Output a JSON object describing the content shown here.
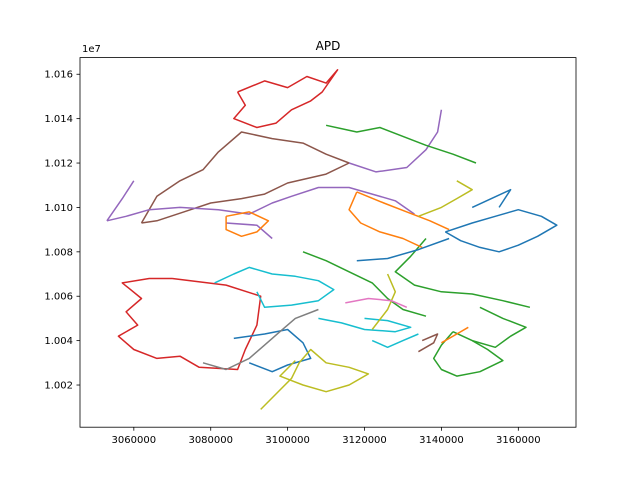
{
  "chart_data": {
    "type": "line",
    "title": "APD",
    "xlabel": "",
    "ylabel": "",
    "offset_text": "1e7",
    "xlim": [
      3046000,
      3175000
    ],
    "ylim": [
      10001000,
      10167500
    ],
    "x_ticks": [
      {
        "value": 3060000,
        "label": "3060000"
      },
      {
        "value": 3080000,
        "label": "3080000"
      },
      {
        "value": 3100000,
        "label": "3100000"
      },
      {
        "value": 3120000,
        "label": "3120000"
      },
      {
        "value": 3140000,
        "label": "3140000"
      },
      {
        "value": 3160000,
        "label": "3160000"
      }
    ],
    "y_ticks": [
      {
        "value": 10020000,
        "label": "1.002"
      },
      {
        "value": 10040000,
        "label": "1.004"
      },
      {
        "value": 10060000,
        "label": "1.006"
      },
      {
        "value": 10080000,
        "label": "1.008"
      },
      {
        "value": 10100000,
        "label": "1.010"
      },
      {
        "value": 10120000,
        "label": "1.012"
      },
      {
        "value": 10140000,
        "label": "1.014"
      },
      {
        "value": 10160000,
        "label": "1.016"
      }
    ],
    "grid": false,
    "legend": "none",
    "series": [
      {
        "color": "#d62728",
        "points": [
          [
            3070000,
            10068000
          ],
          [
            3084000,
            10065000
          ],
          [
            3093000,
            10060000
          ],
          [
            3092000,
            10047000
          ],
          [
            3089000,
            10036000
          ],
          [
            3087000,
            10027000
          ],
          [
            3077000,
            10028000
          ],
          [
            3072000,
            10033000
          ],
          [
            3066000,
            10032000
          ],
          [
            3060000,
            10036000
          ],
          [
            3056000,
            10042000
          ],
          [
            3061000,
            10047000
          ],
          [
            3058000,
            10053000
          ],
          [
            3062000,
            10059000
          ],
          [
            3057000,
            10066000
          ],
          [
            3064000,
            10068000
          ],
          [
            3070000,
            10068000
          ]
        ]
      },
      {
        "color": "#d62728",
        "points": [
          [
            3087000,
            10152000
          ],
          [
            3094000,
            10157000
          ],
          [
            3100000,
            10154000
          ],
          [
            3105000,
            10159000
          ],
          [
            3110000,
            10156000
          ],
          [
            3113000,
            10162000
          ],
          [
            3109000,
            10152000
          ],
          [
            3106000,
            10148000
          ],
          [
            3101000,
            10144000
          ],
          [
            3097000,
            10138000
          ],
          [
            3092000,
            10136000
          ],
          [
            3086000,
            10140000
          ],
          [
            3089000,
            10146000
          ],
          [
            3087000,
            10152000
          ]
        ]
      },
      {
        "color": "#8c564b",
        "points": [
          [
            3062000,
            10093000
          ],
          [
            3066000,
            10105000
          ],
          [
            3072000,
            10112000
          ],
          [
            3078000,
            10117000
          ],
          [
            3082000,
            10125000
          ],
          [
            3088000,
            10134000
          ],
          [
            3096000,
            10131000
          ],
          [
            3104000,
            10129000
          ],
          [
            3110000,
            10124000
          ],
          [
            3116000,
            10120000
          ],
          [
            3110000,
            10115000
          ],
          [
            3100000,
            10111000
          ],
          [
            3094000,
            10106000
          ],
          [
            3088000,
            10104000
          ],
          [
            3080000,
            10102000
          ],
          [
            3073000,
            10098000
          ],
          [
            3066000,
            10094000
          ],
          [
            3062000,
            10093000
          ]
        ]
      },
      {
        "color": "#9467bd",
        "points": [
          [
            3053000,
            10094000
          ],
          [
            3058000,
            10096000
          ],
          [
            3064000,
            10099000
          ],
          [
            3072000,
            10100000
          ],
          [
            3082000,
            10099000
          ],
          [
            3090000,
            10097000
          ],
          [
            3096000,
            10102000
          ],
          [
            3101000,
            10105000
          ],
          [
            3108000,
            10109000
          ],
          [
            3116000,
            10109000
          ],
          [
            3122000,
            10106000
          ],
          [
            3128000,
            10103000
          ],
          [
            3133000,
            10097000
          ]
        ]
      },
      {
        "color": "#9467bd",
        "points": [
          [
            3053000,
            10094000
          ],
          [
            3057000,
            10104000
          ],
          [
            3060000,
            10112000
          ]
        ]
      },
      {
        "color": "#9467bd",
        "points": [
          [
            3116000,
            10120000
          ],
          [
            3123000,
            10116000
          ],
          [
            3131000,
            10118000
          ],
          [
            3136000,
            10126000
          ],
          [
            3139000,
            10134000
          ],
          [
            3140000,
            10144000
          ]
        ]
      },
      {
        "color": "#9467bd",
        "points": [
          [
            3084000,
            10093000
          ],
          [
            3092000,
            10092000
          ],
          [
            3096000,
            10086000
          ]
        ]
      },
      {
        "color": "#2ca02c",
        "points": [
          [
            3110000,
            10137000
          ],
          [
            3118000,
            10134000
          ],
          [
            3124000,
            10136000
          ],
          [
            3130000,
            10132000
          ],
          [
            3136000,
            10128000
          ],
          [
            3143000,
            10124000
          ],
          [
            3149000,
            10120000
          ]
        ]
      },
      {
        "color": "#2ca02c",
        "points": [
          [
            3104000,
            10080000
          ],
          [
            3110000,
            10076000
          ],
          [
            3116000,
            10071000
          ],
          [
            3122000,
            10066000
          ],
          [
            3126000,
            10059000
          ],
          [
            3130000,
            10054000
          ],
          [
            3136000,
            10051000
          ]
        ]
      },
      {
        "color": "#2ca02c",
        "points": [
          [
            3136000,
            10086000
          ],
          [
            3132000,
            10078000
          ],
          [
            3128000,
            10071000
          ],
          [
            3133000,
            10065000
          ],
          [
            3140000,
            10062000
          ],
          [
            3148000,
            10061000
          ],
          [
            3156000,
            10058000
          ],
          [
            3163000,
            10055000
          ]
        ]
      },
      {
        "color": "#2ca02c",
        "points": [
          [
            3143000,
            10044000
          ],
          [
            3148000,
            10040000
          ],
          [
            3152000,
            10036000
          ],
          [
            3156000,
            10031000
          ],
          [
            3150000,
            10026000
          ],
          [
            3144000,
            10024000
          ],
          [
            3140000,
            10027000
          ],
          [
            3138000,
            10032000
          ],
          [
            3140000,
            10038000
          ],
          [
            3143000,
            10044000
          ]
        ]
      },
      {
        "color": "#2ca02c",
        "points": [
          [
            3150000,
            10055000
          ],
          [
            3156000,
            10050000
          ],
          [
            3162000,
            10046000
          ],
          [
            3158000,
            10042000
          ],
          [
            3154000,
            10037000
          ],
          [
            3148000,
            10040000
          ]
        ]
      },
      {
        "color": "#ff7f0e",
        "points": [
          [
            3084000,
            10096000
          ],
          [
            3090000,
            10098000
          ],
          [
            3095000,
            10094000
          ],
          [
            3092000,
            10089000
          ],
          [
            3088000,
            10087000
          ],
          [
            3084000,
            10090000
          ],
          [
            3084000,
            10096000
          ]
        ]
      },
      {
        "color": "#ff7f0e",
        "points": [
          [
            3118000,
            10107000
          ],
          [
            3125000,
            10102000
          ],
          [
            3131000,
            10098000
          ],
          [
            3137000,
            10094000
          ],
          [
            3142000,
            10090000
          ]
        ]
      },
      {
        "color": "#ff7f0e",
        "points": [
          [
            3118000,
            10107000
          ],
          [
            3116000,
            10099000
          ],
          [
            3119000,
            10093000
          ],
          [
            3124000,
            10089000
          ],
          [
            3130000,
            10086000
          ],
          [
            3135000,
            10082000
          ]
        ]
      },
      {
        "color": "#ff7f0e",
        "points": [
          [
            3140000,
            10039000
          ],
          [
            3144000,
            10043000
          ],
          [
            3147000,
            10046000
          ]
        ]
      },
      {
        "color": "#1f77b4",
        "points": [
          [
            3141000,
            10089000
          ],
          [
            3148000,
            10093000
          ],
          [
            3154000,
            10096000
          ],
          [
            3160000,
            10099000
          ],
          [
            3166000,
            10096000
          ],
          [
            3170000,
            10092000
          ],
          [
            3165000,
            10087000
          ],
          [
            3160000,
            10083000
          ],
          [
            3155000,
            10080000
          ],
          [
            3150000,
            10082000
          ],
          [
            3145000,
            10085000
          ],
          [
            3141000,
            10089000
          ]
        ]
      },
      {
        "color": "#1f77b4",
        "points": [
          [
            3148000,
            10100000
          ],
          [
            3153000,
            10104000
          ],
          [
            3158000,
            10108000
          ],
          [
            3155000,
            10100000
          ]
        ]
      },
      {
        "color": "#1f77b4",
        "points": [
          [
            3118000,
            10076000
          ],
          [
            3126000,
            10077000
          ],
          [
            3134000,
            10081000
          ],
          [
            3142000,
            10086000
          ]
        ]
      },
      {
        "color": "#1f77b4",
        "points": [
          [
            3086000,
            10041000
          ],
          [
            3094000,
            10043000
          ],
          [
            3100000,
            10045000
          ],
          [
            3104000,
            10039000
          ],
          [
            3106000,
            10032000
          ],
          [
            3100000,
            10029000
          ],
          [
            3096000,
            10026000
          ],
          [
            3090000,
            10030000
          ]
        ]
      },
      {
        "color": "#17becf",
        "points": [
          [
            3081000,
            10066000
          ],
          [
            3086000,
            10070000
          ],
          [
            3090000,
            10073000
          ],
          [
            3096000,
            10070000
          ],
          [
            3102000,
            10069000
          ],
          [
            3108000,
            10067000
          ],
          [
            3112000,
            10063000
          ],
          [
            3108000,
            10058000
          ],
          [
            3101000,
            10056000
          ],
          [
            3094000,
            10055000
          ],
          [
            3092000,
            10062000
          ]
        ]
      },
      {
        "color": "#17becf",
        "points": [
          [
            3108000,
            10050000
          ],
          [
            3114000,
            10048000
          ],
          [
            3120000,
            10045000
          ],
          [
            3128000,
            10044000
          ],
          [
            3132000,
            10046000
          ],
          [
            3126000,
            10049000
          ],
          [
            3120000,
            10050000
          ]
        ]
      },
      {
        "color": "#17becf",
        "points": [
          [
            3122000,
            10040000
          ],
          [
            3126000,
            10037000
          ],
          [
            3130000,
            10040000
          ],
          [
            3134000,
            10043000
          ]
        ]
      },
      {
        "color": "#bcbd22",
        "points": [
          [
            3093000,
            10009000
          ],
          [
            3097000,
            10016000
          ],
          [
            3101000,
            10023000
          ],
          [
            3103000,
            10030000
          ],
          [
            3106000,
            10036000
          ],
          [
            3110000,
            10030000
          ],
          [
            3116000,
            10028000
          ],
          [
            3121000,
            10025000
          ],
          [
            3116000,
            10020000
          ],
          [
            3110000,
            10017000
          ],
          [
            3104000,
            10020000
          ],
          [
            3098000,
            10024000
          ],
          [
            3102000,
            10031000
          ]
        ]
      },
      {
        "color": "#bcbd22",
        "points": [
          [
            3122000,
            10045000
          ],
          [
            3126000,
            10054000
          ],
          [
            3128000,
            10062000
          ],
          [
            3126000,
            10070000
          ]
        ]
      },
      {
        "color": "#bcbd22",
        "points": [
          [
            3134000,
            10096000
          ],
          [
            3140000,
            10100000
          ],
          [
            3144000,
            10104000
          ],
          [
            3148000,
            10108000
          ],
          [
            3144000,
            10112000
          ]
        ]
      },
      {
        "color": "#7f7f7f",
        "points": [
          [
            3078000,
            10030000
          ],
          [
            3084000,
            10027000
          ],
          [
            3090000,
            10032000
          ],
          [
            3094000,
            10038000
          ],
          [
            3098000,
            10044000
          ],
          [
            3102000,
            10050000
          ],
          [
            3108000,
            10054000
          ]
        ]
      },
      {
        "color": "#e377c2",
        "points": [
          [
            3115000,
            10057000
          ],
          [
            3121000,
            10059000
          ],
          [
            3127000,
            10058000
          ],
          [
            3131000,
            10055000
          ]
        ]
      },
      {
        "color": "#8c564b",
        "points": [
          [
            3134000,
            10035000
          ],
          [
            3138000,
            10039000
          ],
          [
            3139000,
            10043000
          ],
          [
            3135000,
            10040000
          ]
        ]
      }
    ]
  }
}
